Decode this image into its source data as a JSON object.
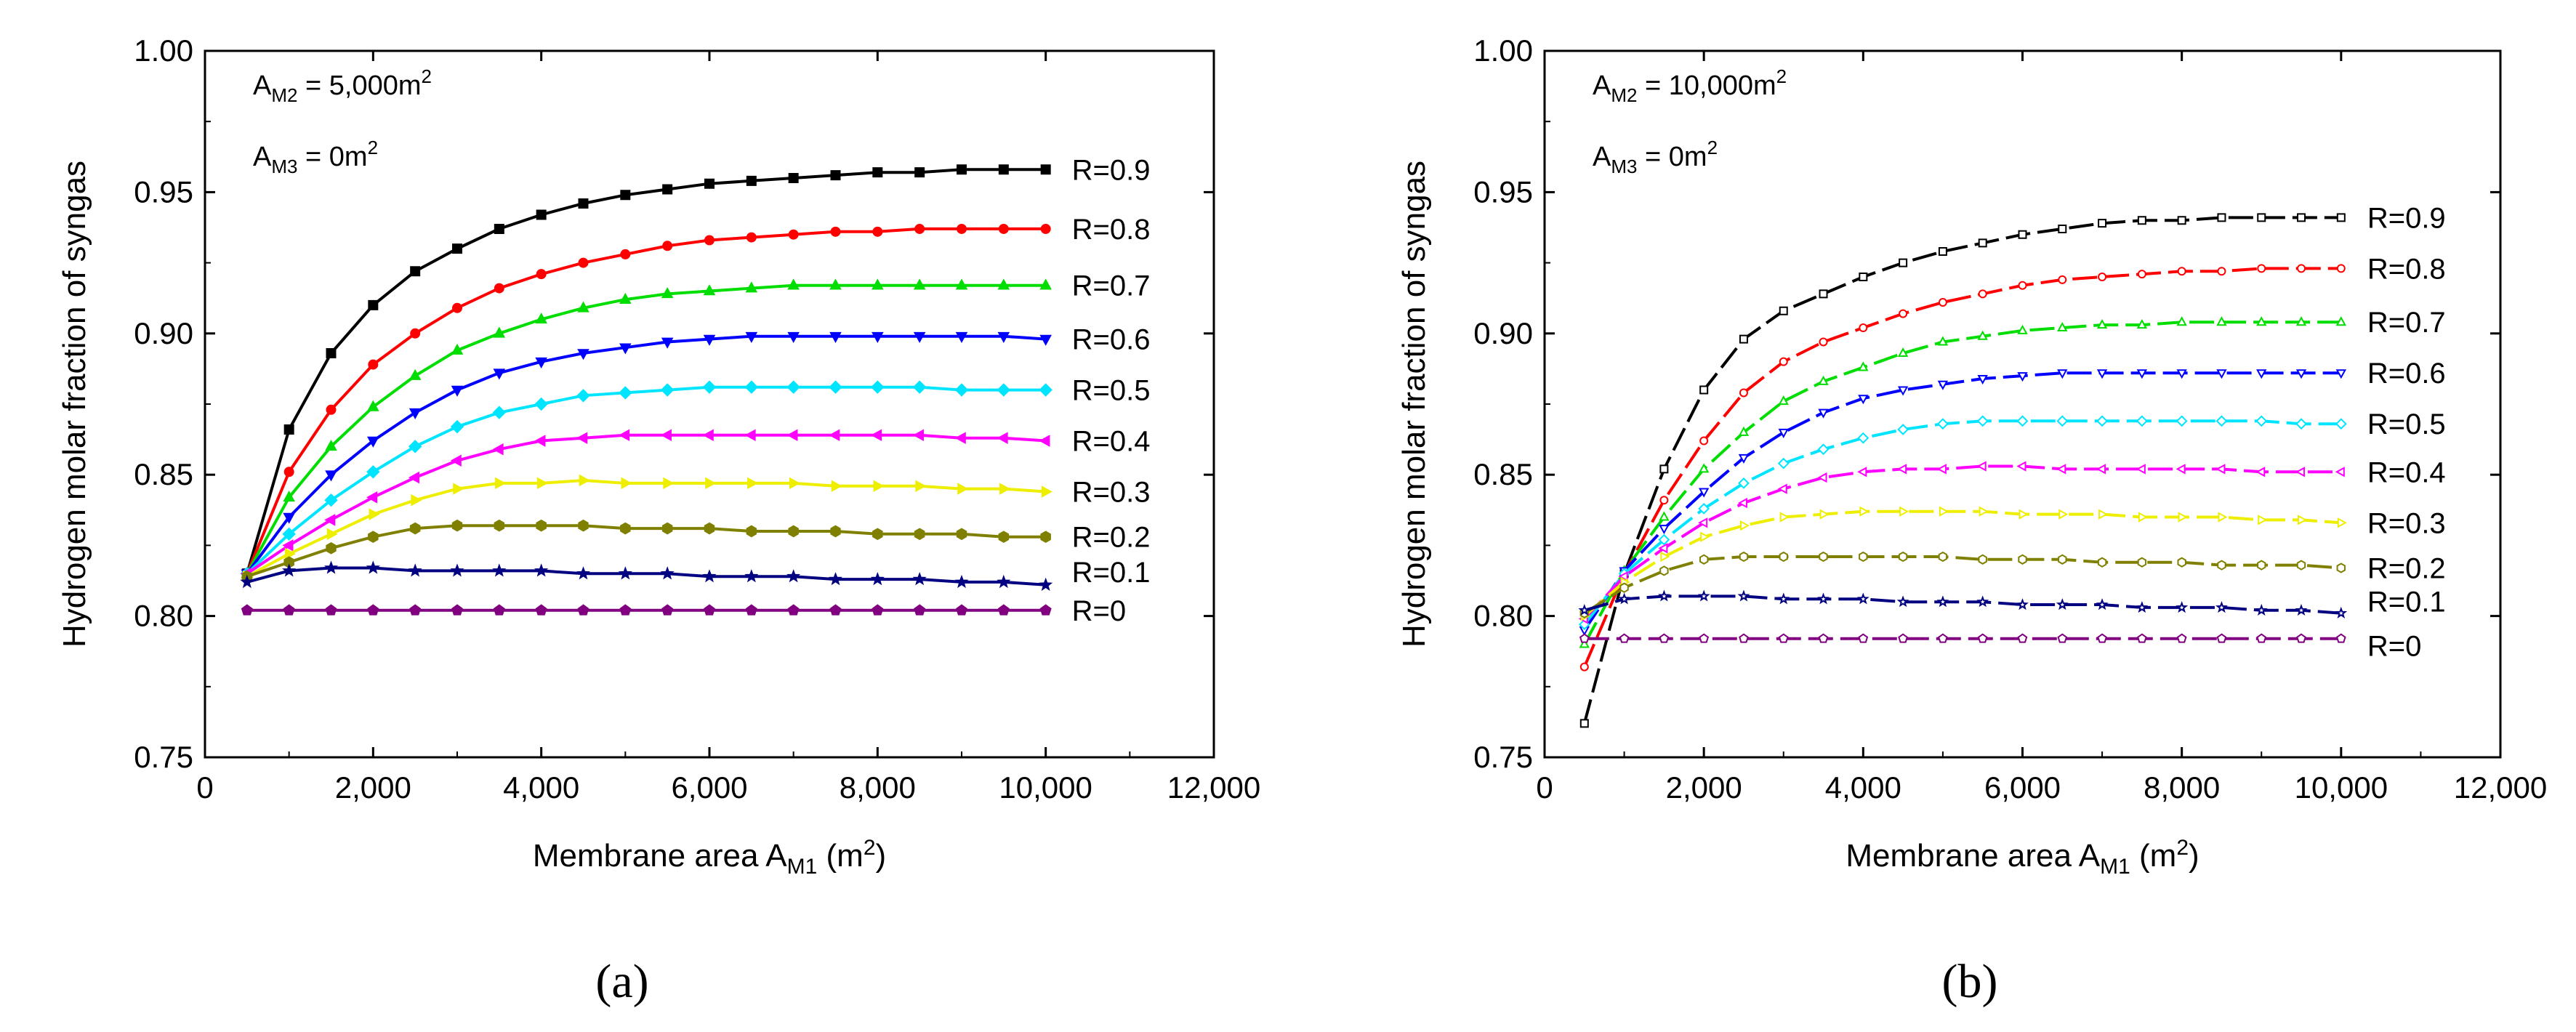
{
  "figure_labels": [
    "(a)",
    "(b)"
  ],
  "chart_data": [
    {
      "type": "line",
      "panel": "(a)",
      "xlabel": "Membrane area A_M1 (m^2)",
      "ylabel": "Hydrogen molar fraction of syngas",
      "xlabel_parts": {
        "main": "Membrane area A",
        "sub": "M1",
        "paren_open": " (m",
        "sup": "2",
        "paren_close": ")"
      },
      "annotations": [
        {
          "pre": "A",
          "sub": "M2",
          "value": " = 5,000m",
          "sup": "2"
        },
        {
          "pre": "A",
          "sub": "M3",
          "value": " = 0m",
          "sup": "2"
        }
      ],
      "xlim": [
        0,
        12000
      ],
      "ylim": [
        0.75,
        1.0
      ],
      "xticks": [
        0,
        2000,
        4000,
        6000,
        8000,
        10000,
        12000
      ],
      "xtick_labels": [
        "0",
        "2,000",
        "4,000",
        "6,000",
        "8,000",
        "10,000",
        "12,000"
      ],
      "yticks": [
        0.75,
        0.8,
        0.85,
        0.9,
        0.95,
        1.0
      ],
      "ytick_labels": [
        "0.75",
        "0.80",
        "0.85",
        "0.90",
        "0.95",
        "1.00"
      ],
      "x": [
        500,
        1000,
        1500,
        2000,
        2500,
        3000,
        3500,
        4000,
        4500,
        5000,
        5500,
        6000,
        6500,
        7000,
        7500,
        8000,
        8500,
        9000,
        9500,
        10000
      ],
      "series": [
        {
          "name": "R=0.9",
          "color": "#000000",
          "marker": "square",
          "values": [
            0.815,
            0.866,
            0.893,
            0.91,
            0.922,
            0.93,
            0.937,
            0.942,
            0.946,
            0.949,
            0.951,
            0.953,
            0.954,
            0.955,
            0.956,
            0.957,
            0.957,
            0.958,
            0.958,
            0.958
          ]
        },
        {
          "name": "R=0.8",
          "color": "#ff0000",
          "marker": "circle",
          "values": [
            0.815,
            0.851,
            0.873,
            0.889,
            0.9,
            0.909,
            0.916,
            0.921,
            0.925,
            0.928,
            0.931,
            0.933,
            0.934,
            0.935,
            0.936,
            0.936,
            0.937,
            0.937,
            0.937,
            0.937
          ]
        },
        {
          "name": "R=0.7",
          "color": "#00dd00",
          "marker": "triangle-up",
          "values": [
            0.815,
            0.842,
            0.86,
            0.874,
            0.885,
            0.894,
            0.9,
            0.905,
            0.909,
            0.912,
            0.914,
            0.915,
            0.916,
            0.917,
            0.917,
            0.917,
            0.917,
            0.917,
            0.917,
            0.917
          ]
        },
        {
          "name": "R=0.6",
          "color": "#0000ff",
          "marker": "triangle-down",
          "values": [
            0.815,
            0.835,
            0.85,
            0.862,
            0.872,
            0.88,
            0.886,
            0.89,
            0.893,
            0.895,
            0.897,
            0.898,
            0.899,
            0.899,
            0.899,
            0.899,
            0.899,
            0.899,
            0.899,
            0.898
          ]
        },
        {
          "name": "R=0.5",
          "color": "#00e5ff",
          "marker": "diamond",
          "values": [
            0.815,
            0.829,
            0.841,
            0.851,
            0.86,
            0.867,
            0.872,
            0.875,
            0.878,
            0.879,
            0.88,
            0.881,
            0.881,
            0.881,
            0.881,
            0.881,
            0.881,
            0.88,
            0.88,
            0.88
          ]
        },
        {
          "name": "R=0.4",
          "color": "#ff00ff",
          "marker": "triangle-left",
          "values": [
            0.815,
            0.825,
            0.834,
            0.842,
            0.849,
            0.855,
            0.859,
            0.862,
            0.863,
            0.864,
            0.864,
            0.864,
            0.864,
            0.864,
            0.864,
            0.864,
            0.864,
            0.863,
            0.863,
            0.862
          ]
        },
        {
          "name": "R=0.3",
          "color": "#eeee00",
          "marker": "triangle-right",
          "values": [
            0.814,
            0.822,
            0.829,
            0.836,
            0.841,
            0.845,
            0.847,
            0.847,
            0.848,
            0.847,
            0.847,
            0.847,
            0.847,
            0.847,
            0.846,
            0.846,
            0.846,
            0.845,
            0.845,
            0.844
          ]
        },
        {
          "name": "R=0.2",
          "color": "#808000",
          "marker": "hexagon",
          "values": [
            0.814,
            0.819,
            0.824,
            0.828,
            0.831,
            0.832,
            0.832,
            0.832,
            0.832,
            0.831,
            0.831,
            0.831,
            0.83,
            0.83,
            0.83,
            0.829,
            0.829,
            0.829,
            0.828,
            0.828
          ]
        },
        {
          "name": "R=0.1",
          "color": "#000080",
          "marker": "star",
          "values": [
            0.812,
            0.816,
            0.817,
            0.817,
            0.816,
            0.816,
            0.816,
            0.816,
            0.815,
            0.815,
            0.815,
            0.814,
            0.814,
            0.814,
            0.813,
            0.813,
            0.813,
            0.812,
            0.812,
            0.811
          ]
        },
        {
          "name": "R=0",
          "color": "#800080",
          "marker": "pentagon",
          "values": [
            0.802,
            0.802,
            0.802,
            0.802,
            0.802,
            0.802,
            0.802,
            0.802,
            0.802,
            0.802,
            0.802,
            0.802,
            0.802,
            0.802,
            0.802,
            0.802,
            0.802,
            0.802,
            0.802,
            0.802
          ]
        }
      ]
    },
    {
      "type": "line",
      "panel": "(b)",
      "xlabel": "Membrane area A_M1 (m^2)",
      "ylabel": "Hydrogen molar fraction of syngas",
      "xlabel_parts": {
        "main": "Membrane area A",
        "sub": "M1",
        "paren_open": " (m",
        "sup": "2",
        "paren_close": ")"
      },
      "annotations": [
        {
          "pre": "A",
          "sub": "M2",
          "value": " = 10,000m",
          "sup": "2"
        },
        {
          "pre": "A",
          "sub": "M3",
          "value": " = 0m",
          "sup": "2"
        }
      ],
      "xlim": [
        0,
        12000
      ],
      "ylim": [
        0.75,
        1.0
      ],
      "xticks": [
        0,
        2000,
        4000,
        6000,
        8000,
        10000,
        12000
      ],
      "xtick_labels": [
        "0",
        "2,000",
        "4,000",
        "6,000",
        "8,000",
        "10,000",
        "12,000"
      ],
      "yticks": [
        0.75,
        0.8,
        0.85,
        0.9,
        0.95,
        1.0
      ],
      "ytick_labels": [
        "0.75",
        "0.80",
        "0.85",
        "0.90",
        "0.95",
        "1.00"
      ],
      "x": [
        500,
        1000,
        1500,
        2000,
        2500,
        3000,
        3500,
        4000,
        4500,
        5000,
        5500,
        6000,
        6500,
        7000,
        7500,
        8000,
        8500,
        9000,
        9500,
        10000
      ],
      "series": [
        {
          "name": "R=0.9",
          "color": "#000000",
          "marker": "open-square",
          "values": [
            0.762,
            0.815,
            0.852,
            0.88,
            0.898,
            0.908,
            0.914,
            0.92,
            0.925,
            0.929,
            0.932,
            0.935,
            0.937,
            0.939,
            0.94,
            0.94,
            0.941,
            0.941,
            0.941,
            0.941
          ]
        },
        {
          "name": "R=0.8",
          "color": "#ff0000",
          "marker": "open-circle",
          "values": [
            0.782,
            0.815,
            0.841,
            0.862,
            0.879,
            0.89,
            0.897,
            0.902,
            0.907,
            0.911,
            0.914,
            0.917,
            0.919,
            0.92,
            0.921,
            0.922,
            0.922,
            0.923,
            0.923,
            0.923
          ]
        },
        {
          "name": "R=0.7",
          "color": "#00dd00",
          "marker": "open-triangle-up",
          "values": [
            0.79,
            0.816,
            0.835,
            0.852,
            0.865,
            0.876,
            0.883,
            0.888,
            0.893,
            0.897,
            0.899,
            0.901,
            0.902,
            0.903,
            0.903,
            0.904,
            0.904,
            0.904,
            0.904,
            0.904
          ]
        },
        {
          "name": "R=0.6",
          "color": "#0000ff",
          "marker": "open-triangle-down",
          "values": [
            0.795,
            0.816,
            0.831,
            0.844,
            0.856,
            0.865,
            0.872,
            0.877,
            0.88,
            0.882,
            0.884,
            0.885,
            0.886,
            0.886,
            0.886,
            0.886,
            0.886,
            0.886,
            0.886,
            0.886
          ]
        },
        {
          "name": "R=0.5",
          "color": "#00e5ff",
          "marker": "open-diamond",
          "values": [
            0.797,
            0.815,
            0.827,
            0.838,
            0.847,
            0.854,
            0.859,
            0.863,
            0.866,
            0.868,
            0.869,
            0.869,
            0.869,
            0.869,
            0.869,
            0.869,
            0.869,
            0.869,
            0.868,
            0.868
          ]
        },
        {
          "name": "R=0.4",
          "color": "#ff00ff",
          "marker": "open-triangle-left",
          "values": [
            0.799,
            0.814,
            0.824,
            0.833,
            0.84,
            0.845,
            0.849,
            0.851,
            0.852,
            0.852,
            0.853,
            0.853,
            0.852,
            0.852,
            0.852,
            0.852,
            0.852,
            0.851,
            0.851,
            0.851
          ]
        },
        {
          "name": "R=0.3",
          "color": "#eeee00",
          "marker": "open-triangle-right",
          "values": [
            0.8,
            0.812,
            0.821,
            0.828,
            0.832,
            0.835,
            0.836,
            0.837,
            0.837,
            0.837,
            0.837,
            0.836,
            0.836,
            0.836,
            0.835,
            0.835,
            0.835,
            0.834,
            0.834,
            0.833
          ]
        },
        {
          "name": "R=0.2",
          "color": "#808000",
          "marker": "open-hexagon",
          "values": [
            0.801,
            0.81,
            0.816,
            0.82,
            0.821,
            0.821,
            0.821,
            0.821,
            0.821,
            0.821,
            0.82,
            0.82,
            0.82,
            0.819,
            0.819,
            0.819,
            0.818,
            0.818,
            0.818,
            0.817
          ]
        },
        {
          "name": "R=0.1",
          "color": "#000080",
          "marker": "open-star",
          "values": [
            0.802,
            0.806,
            0.807,
            0.807,
            0.807,
            0.806,
            0.806,
            0.806,
            0.805,
            0.805,
            0.805,
            0.804,
            0.804,
            0.804,
            0.803,
            0.803,
            0.803,
            0.802,
            0.802,
            0.801
          ]
        },
        {
          "name": "R=0",
          "color": "#800080",
          "marker": "open-pentagon",
          "values": [
            0.792,
            0.792,
            0.792,
            0.792,
            0.792,
            0.792,
            0.792,
            0.792,
            0.792,
            0.792,
            0.792,
            0.792,
            0.792,
            0.792,
            0.792,
            0.792,
            0.792,
            0.792,
            0.792,
            0.792
          ]
        }
      ]
    }
  ]
}
